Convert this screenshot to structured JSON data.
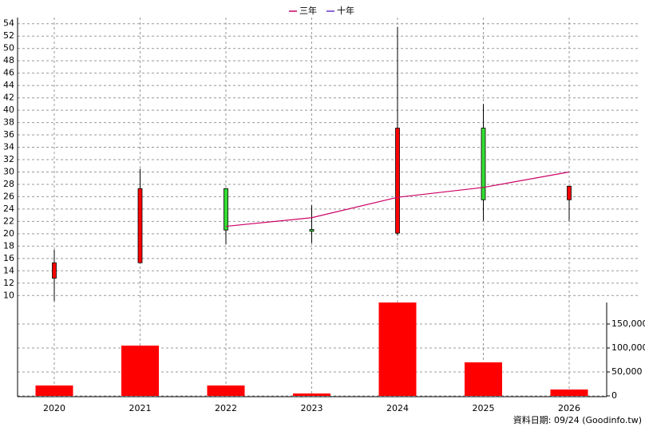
{
  "chart_data": [
    {
      "type": "candlestick",
      "categories": [
        "2020",
        "2021",
        "2022",
        "2023",
        "2024",
        "2025",
        "2026"
      ],
      "candles": [
        {
          "open": 12.8,
          "high": 17.4,
          "low": 9.1,
          "close": 15.3
        },
        {
          "open": 15.3,
          "high": 30.5,
          "low": 15.3,
          "close": 27.3
        },
        {
          "open": 27.3,
          "high": 27.4,
          "low": 18.3,
          "close": 20.6
        },
        {
          "open": 20.7,
          "high": 24.6,
          "low": 18.5,
          "close": 20.4
        },
        {
          "open": 20.1,
          "high": 53.5,
          "low": 19.7,
          "close": 37.1
        },
        {
          "open": 37.1,
          "high": 41.0,
          "low": 22.1,
          "close": 25.5
        },
        {
          "open": 25.5,
          "high": 27.7,
          "low": 22.1,
          "close": 27.7
        }
      ],
      "up_color": "#ff0000",
      "down_color": "#33dd33",
      "series": [
        {
          "name": "三年",
          "color": "#cc0066",
          "values": [
            null,
            null,
            21.2,
            22.6,
            25.9,
            27.5,
            30.0
          ]
        },
        {
          "name": "十年",
          "color": "#6633cc",
          "values": [
            null,
            null,
            null,
            null,
            null,
            null,
            null
          ]
        }
      ],
      "ylim": [
        9,
        55
      ],
      "yticks": [
        10,
        12,
        14,
        16,
        18,
        20,
        22,
        24,
        26,
        28,
        30,
        32,
        34,
        36,
        38,
        40,
        42,
        44,
        46,
        48,
        50,
        52,
        54
      ],
      "grid": true
    },
    {
      "type": "bar",
      "values": [
        21700,
        105000,
        21700,
        5000,
        195000,
        70000,
        13300
      ],
      "color": "#ff0000",
      "ylim": [
        0,
        195000
      ],
      "yticks": [
        0,
        {
          "value": 50000,
          "label": "50,000"
        },
        {
          "value": 100000,
          "label": "100,000"
        },
        {
          "value": 150000,
          "label": "150,000"
        }
      ],
      "grid": true
    }
  ],
  "footer": "資料日期: 09/24  (Goodinfo.tw)"
}
